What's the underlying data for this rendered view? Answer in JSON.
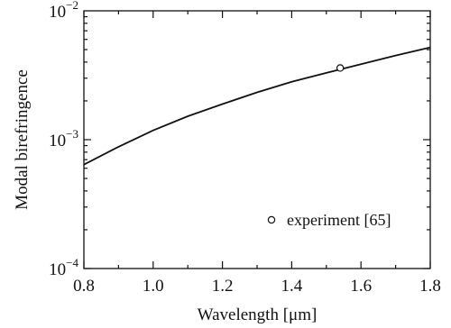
{
  "chart_data": {
    "type": "line",
    "xlabel": "Wavelength [μm]",
    "ylabel": "Modal birefringence",
    "xlim": [
      0.8,
      1.8
    ],
    "ylim": [
      0.0001,
      0.01
    ],
    "y_scale": "log",
    "x_ticks": [
      "0.8",
      "1.0",
      "1.2",
      "1.4",
      "1.6",
      "1.8"
    ],
    "x_tick_values": [
      0.8,
      1.0,
      1.2,
      1.4,
      1.6,
      1.8
    ],
    "y_ticks": [
      {
        "value": 0.0001,
        "base": "10",
        "exp": "−4"
      },
      {
        "value": 0.001,
        "base": "10",
        "exp": "−3"
      },
      {
        "value": 0.01,
        "base": "10",
        "exp": "−2"
      }
    ],
    "grid": false,
    "legend_position": "bottom-right",
    "series": [
      {
        "marker": "line",
        "x": [
          0.8,
          0.9,
          1.0,
          1.1,
          1.2,
          1.3,
          1.4,
          1.5,
          1.6,
          1.7,
          1.8
        ],
        "y": [
          0.00064,
          0.00088,
          0.00118,
          0.00152,
          0.00189,
          0.00233,
          0.00281,
          0.0033,
          0.00385,
          0.0045,
          0.0052
        ]
      },
      {
        "name": "experiment [65]",
        "marker": "circle-open",
        "x": [
          1.54
        ],
        "y": [
          0.0036
        ]
      }
    ]
  }
}
